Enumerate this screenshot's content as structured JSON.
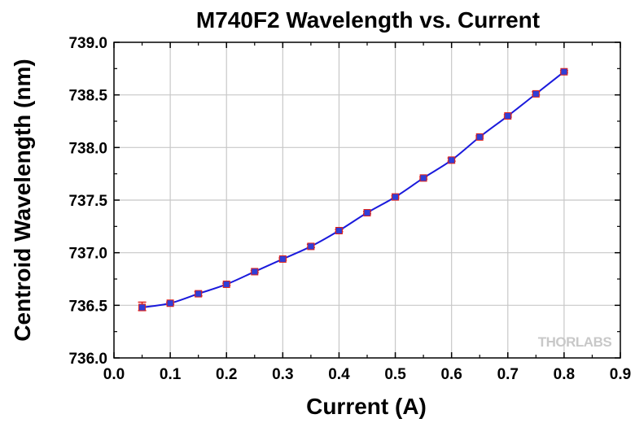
{
  "chart_data": {
    "type": "line",
    "title": "M740F2 Wavelength vs. Current",
    "xlabel": "Current (A)",
    "ylabel": "Centroid Wavelength (nm)",
    "xlim": [
      0.0,
      0.9
    ],
    "ylim": [
      736.0,
      739.0
    ],
    "x_ticks": [
      "0.0",
      "0.1",
      "0.2",
      "0.3",
      "0.4",
      "0.5",
      "0.6",
      "0.7",
      "0.8",
      "0.9"
    ],
    "y_ticks": [
      "736.0",
      "736.5",
      "737.0",
      "737.5",
      "738.0",
      "738.5",
      "739.0"
    ],
    "grid": true,
    "series": [
      {
        "x": [
          0.05,
          0.1,
          0.15,
          0.2,
          0.25,
          0.3,
          0.35,
          0.4,
          0.45,
          0.5,
          0.55,
          0.6,
          0.65,
          0.7,
          0.75,
          0.8
        ],
        "y": [
          736.48,
          736.52,
          736.61,
          736.7,
          736.82,
          736.94,
          737.06,
          737.21,
          737.38,
          737.53,
          737.71,
          737.88,
          738.1,
          738.3,
          738.51,
          738.72
        ],
        "error_up": [
          0.05,
          0.01,
          0.02,
          0.01,
          0.01,
          0.01,
          0.02,
          0.01,
          0.01,
          0.01,
          0.01,
          0.02,
          0.01,
          0.01,
          0.02,
          0.01
        ],
        "error_down": [
          0.03,
          0.01,
          0.02,
          0.01,
          0.01,
          0.01,
          0.01,
          0.01,
          0.01,
          0.01,
          0.01,
          0.01,
          0.01,
          0.01,
          0.01,
          0.01
        ]
      }
    ],
    "colors": {
      "line": "#1a1adc",
      "marker": "#2f3fd8",
      "error_bar": "#e0201a",
      "grid": "#c8c8c8"
    }
  },
  "watermark": "THORLABS"
}
